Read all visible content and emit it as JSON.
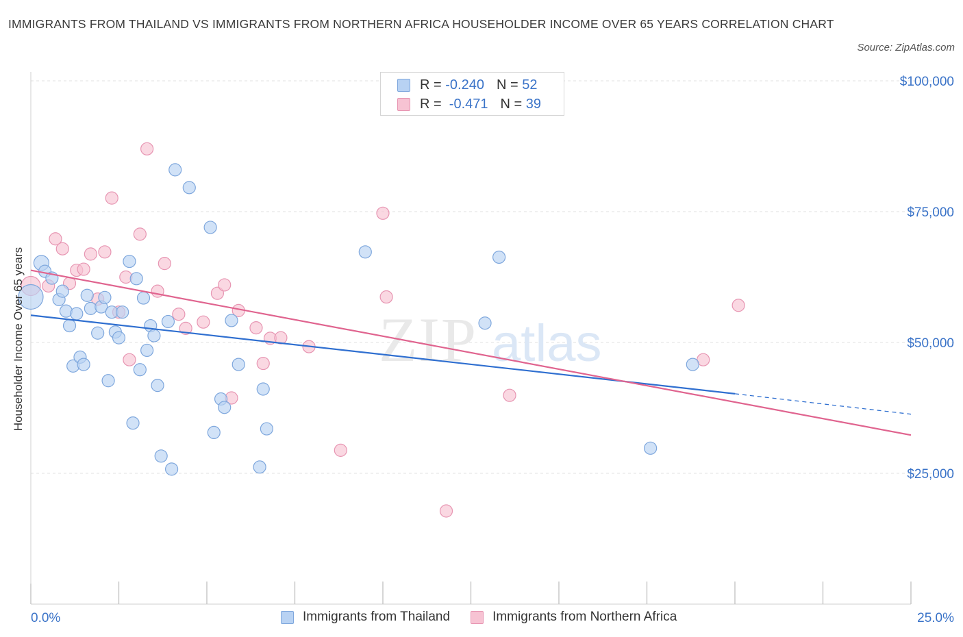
{
  "title": "IMMIGRANTS FROM THAILAND VS IMMIGRANTS FROM NORTHERN AFRICA HOUSEHOLDER INCOME OVER 65 YEARS CORRELATION CHART",
  "source": "Source: ZipAtlas.com",
  "watermark": {
    "zip": "ZIP",
    "atlas": "atlas"
  },
  "colors": {
    "blue_fill": "#b8d2f3",
    "blue_stroke": "#7ea7dd",
    "blue_line": "#2f6fd0",
    "pink_fill": "#f7c3d3",
    "pink_stroke": "#e795b2",
    "pink_line": "#e0648f",
    "axis_text": "#3a73c8",
    "grid": "#e2e2e2"
  },
  "legend": {
    "rows": [
      {
        "r_label": "R = ",
        "r_value": "-0.240",
        "n_label": "N = ",
        "n_value": "52"
      },
      {
        "r_label": "R = ",
        "r_value": " -0.471",
        "n_label": "N = ",
        "n_value": "39"
      }
    ]
  },
  "chart_data": {
    "type": "scatter",
    "title": "IMMIGRANTS FROM THAILAND VS IMMIGRANTS FROM NORTHERN AFRICA HOUSEHOLDER INCOME OVER 65 YEARS CORRELATION CHART",
    "xlabel": "",
    "ylabel": "Householder Income Over 65 years",
    "xlim": [
      0,
      25
    ],
    "ylim": [
      0,
      100000
    ],
    "x_tick_labels": [
      "0.0%",
      "25.0%"
    ],
    "y_ticks": [
      25000,
      50000,
      75000,
      100000
    ],
    "y_tick_labels": [
      "$25,000",
      "$50,000",
      "$75,000",
      "$100,000"
    ],
    "grid": true,
    "legend_position": "top-center",
    "series": [
      {
        "name": "Immigrants from Thailand",
        "r": -0.24,
        "n": 52,
        "trend": {
          "x_start": 0,
          "y_start": 55200,
          "x_end": 20.0,
          "y_end": 40200,
          "dashed_to_x": 25,
          "dashed_to_y": 36300
        },
        "points": [
          [
            0.0,
            58700,
            18
          ],
          [
            0.3,
            65200,
            11
          ],
          [
            0.4,
            63600,
            9
          ],
          [
            0.6,
            62300,
            9
          ],
          [
            0.8,
            58200,
            9
          ],
          [
            0.9,
            59800,
            9
          ],
          [
            1.0,
            56000,
            9
          ],
          [
            1.1,
            53200,
            9
          ],
          [
            1.2,
            45500,
            9
          ],
          [
            1.3,
            55500,
            9
          ],
          [
            1.4,
            47200,
            9
          ],
          [
            1.5,
            45800,
            9
          ],
          [
            1.6,
            59000,
            9
          ],
          [
            1.7,
            56500,
            9
          ],
          [
            1.9,
            51800,
            9
          ],
          [
            2.0,
            56800,
            9
          ],
          [
            2.1,
            58600,
            9
          ],
          [
            2.2,
            42700,
            9
          ],
          [
            2.3,
            55800,
            9
          ],
          [
            2.4,
            52000,
            9
          ],
          [
            2.5,
            50900,
            9
          ],
          [
            2.6,
            55800,
            9
          ],
          [
            2.8,
            65500,
            9
          ],
          [
            2.9,
            34600,
            9
          ],
          [
            3.0,
            62200,
            9
          ],
          [
            3.1,
            44800,
            9
          ],
          [
            3.2,
            58500,
            9
          ],
          [
            3.3,
            48500,
            9
          ],
          [
            3.4,
            53200,
            9
          ],
          [
            3.5,
            51300,
            9
          ],
          [
            3.6,
            41800,
            9
          ],
          [
            3.7,
            28300,
            9
          ],
          [
            3.9,
            54000,
            9
          ],
          [
            4.0,
            25800,
            9
          ],
          [
            4.1,
            83000,
            9
          ],
          [
            4.5,
            79600,
            9
          ],
          [
            5.1,
            72000,
            9
          ],
          [
            5.2,
            32800,
            9
          ],
          [
            5.4,
            39200,
            9
          ],
          [
            5.5,
            37600,
            9
          ],
          [
            5.7,
            54200,
            9
          ],
          [
            5.9,
            45800,
            9
          ],
          [
            6.5,
            26200,
            9
          ],
          [
            6.6,
            41100,
            9
          ],
          [
            6.7,
            33500,
            9
          ],
          [
            9.5,
            67300,
            9
          ],
          [
            12.9,
            53700,
            9
          ],
          [
            13.3,
            66300,
            9
          ],
          [
            17.6,
            29800,
            9
          ],
          [
            18.8,
            45800,
            9
          ]
        ]
      },
      {
        "name": "Immigrants from Northern Africa",
        "r": -0.471,
        "n": 39,
        "trend": {
          "x_start": 0,
          "y_start": 63800,
          "x_end": 25,
          "y_end": 32300
        },
        "points": [
          [
            0.0,
            60800,
            14
          ],
          [
            0.5,
            60800,
            9
          ],
          [
            0.7,
            69800,
            9
          ],
          [
            0.9,
            67900,
            9
          ],
          [
            1.1,
            61300,
            9
          ],
          [
            1.3,
            63800,
            9
          ],
          [
            1.5,
            64000,
            9
          ],
          [
            1.7,
            66900,
            9
          ],
          [
            1.9,
            58300,
            9
          ],
          [
            2.1,
            67300,
            9
          ],
          [
            2.3,
            77600,
            9
          ],
          [
            2.5,
            55800,
            9
          ],
          [
            2.7,
            62500,
            9
          ],
          [
            2.8,
            46700,
            9
          ],
          [
            3.1,
            70700,
            9
          ],
          [
            3.3,
            87000,
            9
          ],
          [
            3.6,
            59800,
            9
          ],
          [
            3.8,
            65100,
            9
          ],
          [
            4.2,
            55400,
            9
          ],
          [
            4.4,
            52700,
            9
          ],
          [
            4.9,
            53900,
            9
          ],
          [
            5.3,
            59400,
            9
          ],
          [
            5.5,
            61000,
            9
          ],
          [
            5.7,
            39400,
            9
          ],
          [
            5.9,
            56100,
            9
          ],
          [
            6.4,
            52800,
            9
          ],
          [
            6.6,
            46000,
            9
          ],
          [
            6.8,
            50800,
            9
          ],
          [
            7.1,
            50900,
            9
          ],
          [
            7.9,
            49200,
            9
          ],
          [
            8.8,
            29400,
            9
          ],
          [
            10.0,
            74700,
            9
          ],
          [
            10.1,
            58700,
            9
          ],
          [
            11.8,
            17800,
            9
          ],
          [
            13.6,
            39900,
            9
          ],
          [
            19.1,
            46700,
            9
          ],
          [
            20.1,
            57100,
            9
          ]
        ]
      }
    ]
  }
}
